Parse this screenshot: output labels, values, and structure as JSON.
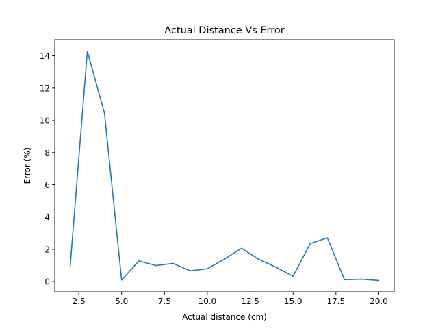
{
  "chart_data": {
    "type": "line",
    "title": "Actual Distance Vs Error",
    "xlabel": "Actual distance (cm)",
    "ylabel": "Error (%)",
    "xlim": [
      1.1,
      20.9
    ],
    "ylim": [
      -0.63,
      15.0
    ],
    "grid": false,
    "xticks": [
      2.5,
      5.0,
      7.5,
      10.0,
      12.5,
      15.0,
      17.5,
      20.0
    ],
    "xtick_labels": [
      "2.5",
      "5.0",
      "7.5",
      "10.0",
      "12.5",
      "15.0",
      "17.5",
      "20.0"
    ],
    "yticks": [
      0,
      2,
      4,
      6,
      8,
      10,
      12,
      14
    ],
    "ytick_labels": [
      "0",
      "2",
      "4",
      "6",
      "8",
      "10",
      "12",
      "14"
    ],
    "series": [
      {
        "color": "#1f77b4",
        "x": [
          2,
          3,
          4,
          5,
          6,
          7,
          8,
          9,
          10,
          11,
          12,
          13,
          14,
          15,
          16,
          17,
          18,
          19,
          20
        ],
        "y": [
          0.95,
          14.28,
          10.45,
          0.1,
          1.28,
          1.0,
          1.13,
          0.67,
          0.8,
          1.4,
          2.07,
          1.38,
          0.9,
          0.33,
          2.36,
          2.71,
          0.12,
          0.15,
          0.07
        ]
      }
    ]
  }
}
